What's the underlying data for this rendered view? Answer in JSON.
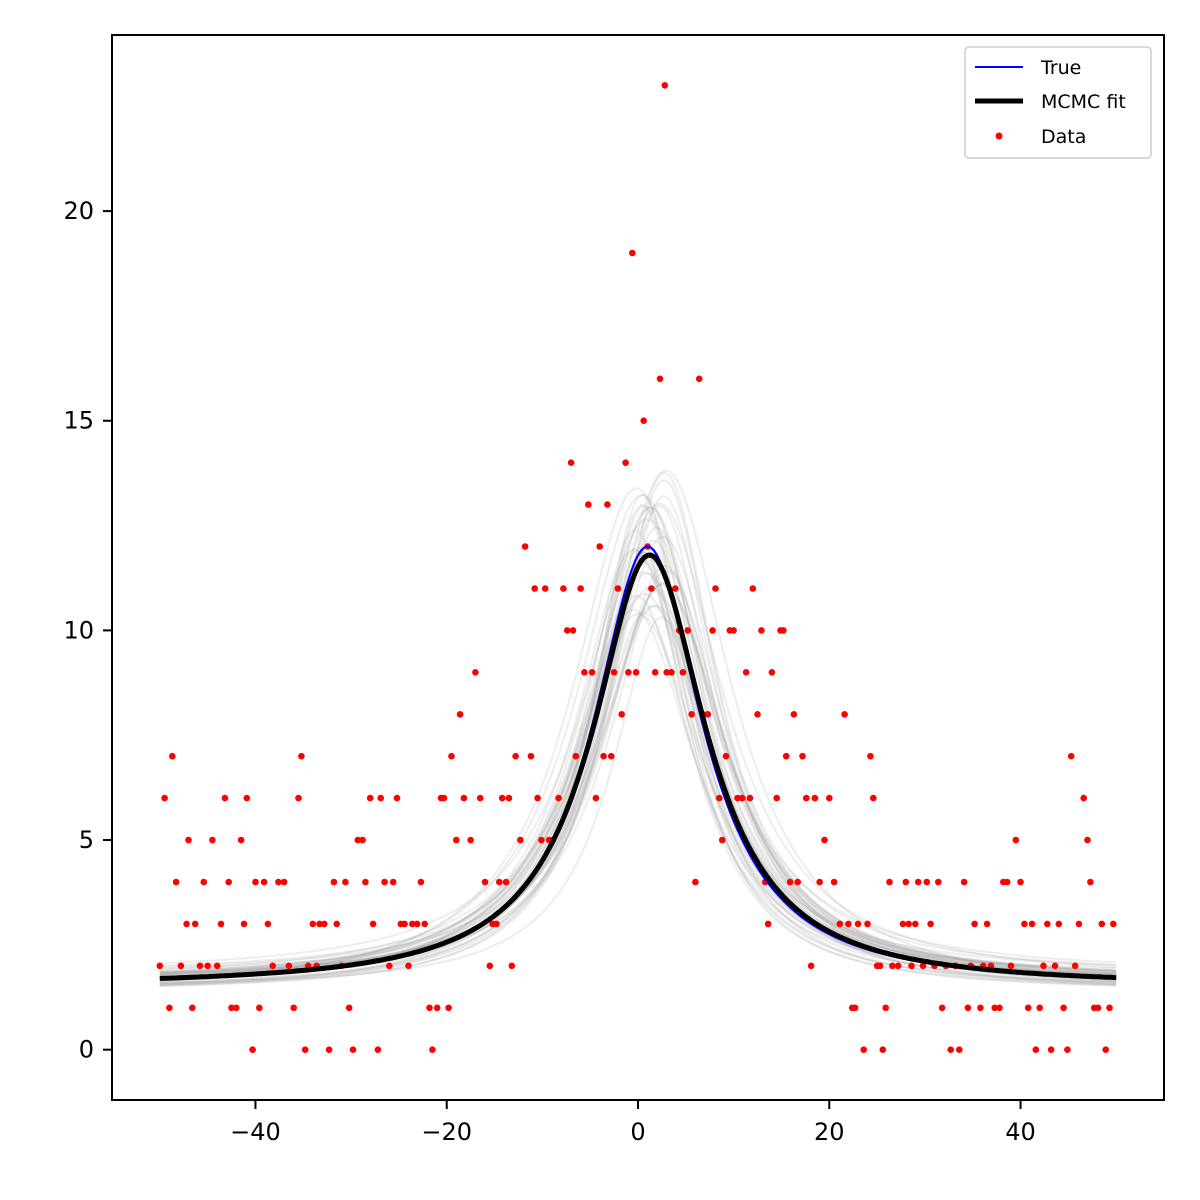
{
  "chart_data": {
    "type": "scatter",
    "title": "",
    "xlabel": "",
    "ylabel": "",
    "xlim": [
      -55,
      55
    ],
    "ylim": [
      -1.2,
      24.2
    ],
    "xticks": [
      -40,
      -20,
      0,
      20,
      40
    ],
    "xtick_labels": [
      "−40",
      "−20",
      "0",
      "20",
      "40"
    ],
    "yticks": [
      0,
      5,
      10,
      15,
      20
    ],
    "ytick_labels": [
      "0",
      "5",
      "10",
      "15",
      "20"
    ],
    "grid": false,
    "legend": {
      "placement": "top-right",
      "entries": [
        {
          "label": "True",
          "kind": "line",
          "color": "#0000ff"
        },
        {
          "label": "MCMC fit",
          "kind": "line",
          "color": "#000000"
        },
        {
          "label": "Data",
          "kind": "marker",
          "color": "#ff0000"
        }
      ]
    },
    "series": [
      {
        "name": "True",
        "type": "line",
        "color": "#0000ff",
        "model": "lorentzian",
        "amplitude": 10.5,
        "center": 1.0,
        "hwhm": 7.0,
        "baseline": 1.5,
        "x_range": [
          -50,
          50
        ]
      },
      {
        "name": "MCMC fit",
        "type": "line",
        "color": "#000000",
        "model": "lorentzian",
        "amplitude": 10.3,
        "center": 1.2,
        "hwhm": 7.2,
        "baseline": 1.5,
        "x_range": [
          -50,
          50
        ]
      },
      {
        "name": "Data",
        "type": "scatter",
        "color": "#ff0000",
        "points": [
          [
            -50,
            2
          ],
          [
            -49.5,
            6
          ],
          [
            -49,
            1
          ],
          [
            -48.7,
            7
          ],
          [
            -48.3,
            4
          ],
          [
            -47.8,
            2
          ],
          [
            -47.2,
            3
          ],
          [
            -47,
            5
          ],
          [
            -46.6,
            1
          ],
          [
            -46.3,
            3
          ],
          [
            -45.8,
            2
          ],
          [
            -45.4,
            4
          ],
          [
            -45,
            2
          ],
          [
            -44.5,
            5
          ],
          [
            -44,
            2
          ],
          [
            -43.6,
            3
          ],
          [
            -43.2,
            6
          ],
          [
            -42.8,
            4
          ],
          [
            -42.5,
            1
          ],
          [
            -42,
            1
          ],
          [
            -41.5,
            5
          ],
          [
            -41.2,
            3
          ],
          [
            -40.9,
            6
          ],
          [
            -40.3,
            0
          ],
          [
            -40,
            4
          ],
          [
            -39.6,
            1
          ],
          [
            -39.1,
            4
          ],
          [
            -38.7,
            3
          ],
          [
            -38.2,
            2
          ],
          [
            -37.6,
            4
          ],
          [
            -37,
            4
          ],
          [
            -36.5,
            2
          ],
          [
            -36,
            1
          ],
          [
            -35.5,
            6
          ],
          [
            -35.2,
            7
          ],
          [
            -34.8,
            0
          ],
          [
            -34.5,
            2
          ],
          [
            -34,
            3
          ],
          [
            -33.6,
            2
          ],
          [
            -33.3,
            3
          ],
          [
            -32.8,
            3
          ],
          [
            -32.3,
            0
          ],
          [
            -31.8,
            4
          ],
          [
            -31.5,
            3
          ],
          [
            -31,
            2
          ],
          [
            -30.6,
            4
          ],
          [
            -30.2,
            1
          ],
          [
            -29.8,
            0
          ],
          [
            -29.3,
            5
          ],
          [
            -28.8,
            5
          ],
          [
            -28.5,
            4
          ],
          [
            -28,
            6
          ],
          [
            -27.7,
            3
          ],
          [
            -27.2,
            0
          ],
          [
            -26.9,
            6
          ],
          [
            -26.5,
            4
          ],
          [
            -26,
            2
          ],
          [
            -25.6,
            4
          ],
          [
            -25.2,
            6
          ],
          [
            -24.8,
            3
          ],
          [
            -24.4,
            3
          ],
          [
            -24,
            2
          ],
          [
            -23.6,
            3
          ],
          [
            -23.1,
            3
          ],
          [
            -22.7,
            4
          ],
          [
            -22.3,
            3
          ],
          [
            -21.8,
            1
          ],
          [
            -21.5,
            0
          ],
          [
            -21,
            1
          ],
          [
            -20.6,
            6
          ],
          [
            -20.3,
            6
          ],
          [
            -19.8,
            1
          ],
          [
            -19.5,
            7
          ],
          [
            -19,
            5
          ],
          [
            -18.6,
            8
          ],
          [
            -18.2,
            6
          ],
          [
            -17.5,
            5
          ],
          [
            -17,
            9
          ],
          [
            -16.5,
            6
          ],
          [
            -16,
            4
          ],
          [
            -15.5,
            2
          ],
          [
            -15.2,
            3
          ],
          [
            -14.8,
            3
          ],
          [
            -14.5,
            4
          ],
          [
            -14.2,
            6
          ],
          [
            -13.8,
            4
          ],
          [
            -13.5,
            6
          ],
          [
            -13.2,
            2
          ],
          [
            -12.8,
            7
          ],
          [
            -12.3,
            5
          ],
          [
            -11.8,
            12
          ],
          [
            -11.2,
            7
          ],
          [
            -10.8,
            11
          ],
          [
            -10.5,
            6
          ],
          [
            -10.1,
            5
          ],
          [
            -9.7,
            11
          ],
          [
            -9.3,
            5
          ],
          [
            -8.9,
            5
          ],
          [
            -8.3,
            6
          ],
          [
            -7.8,
            11
          ],
          [
            -7.4,
            10
          ],
          [
            -7,
            14
          ],
          [
            -6.8,
            10
          ],
          [
            -6.5,
            7
          ],
          [
            -6,
            11
          ],
          [
            -5.6,
            9
          ],
          [
            -5.2,
            13
          ],
          [
            -4.8,
            9
          ],
          [
            -4.4,
            6
          ],
          [
            -4,
            12
          ],
          [
            -3.6,
            7
          ],
          [
            -3.2,
            13
          ],
          [
            -2.8,
            7
          ],
          [
            -2.5,
            9
          ],
          [
            -2.1,
            11
          ],
          [
            -1.7,
            8
          ],
          [
            -1.3,
            14
          ],
          [
            -1,
            9
          ],
          [
            -0.6,
            19
          ],
          [
            -0.2,
            9
          ],
          [
            0.6,
            15
          ],
          [
            1,
            12
          ],
          [
            1.4,
            11
          ],
          [
            1.8,
            9
          ],
          [
            2.3,
            16
          ],
          [
            2.8,
            23
          ],
          [
            3,
            9
          ],
          [
            3.5,
            9
          ],
          [
            3.9,
            11
          ],
          [
            4.3,
            10
          ],
          [
            4.7,
            9
          ],
          [
            5.2,
            10
          ],
          [
            5.6,
            8
          ],
          [
            6,
            4
          ],
          [
            6.4,
            16
          ],
          [
            6.8,
            8
          ],
          [
            7.3,
            8
          ],
          [
            7.8,
            10
          ],
          [
            8.1,
            11
          ],
          [
            8.5,
            6
          ],
          [
            8.8,
            5
          ],
          [
            9.2,
            7
          ],
          [
            9.6,
            10
          ],
          [
            10,
            10
          ],
          [
            10.4,
            6
          ],
          [
            10.9,
            6
          ],
          [
            11.3,
            9
          ],
          [
            11.7,
            6
          ],
          [
            12,
            11
          ],
          [
            12.5,
            8
          ],
          [
            12.9,
            10
          ],
          [
            13.3,
            4
          ],
          [
            13.6,
            3
          ],
          [
            14,
            9
          ],
          [
            14.5,
            6
          ],
          [
            14.9,
            10
          ],
          [
            15.2,
            10
          ],
          [
            15.5,
            7
          ],
          [
            15.9,
            4
          ],
          [
            16.3,
            8
          ],
          [
            16.7,
            4
          ],
          [
            17.2,
            7
          ],
          [
            17.6,
            6
          ],
          [
            18.1,
            2
          ],
          [
            18.5,
            6
          ],
          [
            19,
            4
          ],
          [
            19.5,
            5
          ],
          [
            20,
            6
          ],
          [
            20.5,
            4
          ],
          [
            21.1,
            3
          ],
          [
            21.6,
            8
          ],
          [
            22,
            3
          ],
          [
            22.4,
            1
          ],
          [
            22.7,
            1
          ],
          [
            23,
            3
          ],
          [
            23.6,
            0
          ],
          [
            24,
            3
          ],
          [
            24.3,
            7
          ],
          [
            24.6,
            6
          ],
          [
            25,
            2
          ],
          [
            25.3,
            2
          ],
          [
            25.6,
            0
          ],
          [
            25.9,
            1
          ],
          [
            26.3,
            4
          ],
          [
            26.6,
            2
          ],
          [
            27.2,
            2
          ],
          [
            27.7,
            3
          ],
          [
            28,
            4
          ],
          [
            28.3,
            3
          ],
          [
            28.6,
            2
          ],
          [
            29,
            3
          ],
          [
            29.3,
            4
          ],
          [
            29.8,
            2
          ],
          [
            30.2,
            4
          ],
          [
            30.6,
            3
          ],
          [
            31,
            2
          ],
          [
            31.4,
            4
          ],
          [
            31.8,
            1
          ],
          [
            32.2,
            2
          ],
          [
            32.7,
            0
          ],
          [
            33.2,
            2
          ],
          [
            33.6,
            0
          ],
          [
            34.1,
            4
          ],
          [
            34.5,
            1
          ],
          [
            34.8,
            2
          ],
          [
            35.2,
            3
          ],
          [
            35.8,
            1
          ],
          [
            36.1,
            2
          ],
          [
            36.5,
            3
          ],
          [
            36.9,
            2
          ],
          [
            37.3,
            1
          ],
          [
            37.8,
            1
          ],
          [
            38.2,
            4
          ],
          [
            38.6,
            4
          ],
          [
            39,
            2
          ],
          [
            39.5,
            5
          ],
          [
            40,
            4
          ],
          [
            40.4,
            3
          ],
          [
            40.8,
            1
          ],
          [
            41.2,
            3
          ],
          [
            41.6,
            0
          ],
          [
            42,
            1
          ],
          [
            42.4,
            2
          ],
          [
            42.8,
            3
          ],
          [
            43.2,
            0
          ],
          [
            43.6,
            2
          ],
          [
            44,
            3
          ],
          [
            44.5,
            1
          ],
          [
            44.9,
            0
          ],
          [
            45.3,
            7
          ],
          [
            45.7,
            2
          ],
          [
            46.1,
            3
          ],
          [
            46.6,
            6
          ],
          [
            47,
            5
          ],
          [
            47.3,
            4
          ],
          [
            47.7,
            1
          ],
          [
            48.1,
            1
          ],
          [
            48.5,
            3
          ],
          [
            48.9,
            0
          ],
          [
            49.3,
            1
          ],
          [
            49.7,
            3
          ]
        ]
      }
    ],
    "samples": {
      "count": 40,
      "color": "#999999",
      "center_range": [
        -0.5,
        3.0
      ],
      "peak_range": [
        10.3,
        14.0
      ]
    }
  }
}
